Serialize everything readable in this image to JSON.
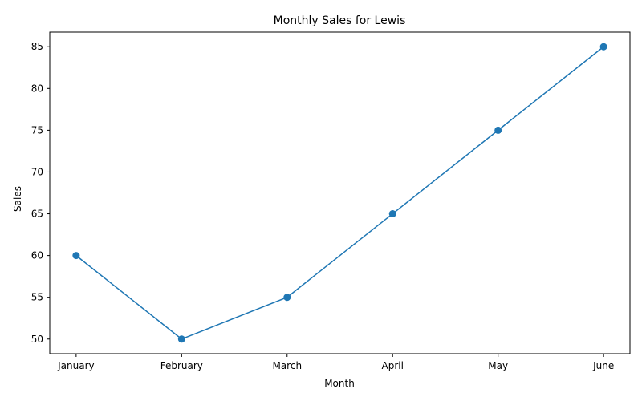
{
  "chart_data": {
    "type": "line",
    "title": "Monthly Sales for Lewis",
    "xlabel": "Month",
    "ylabel": "Sales",
    "categories": [
      "January",
      "February",
      "March",
      "April",
      "May",
      "June"
    ],
    "series": [
      {
        "values": [
          60,
          50,
          55,
          65,
          75,
          85
        ],
        "color": "#1f77b4",
        "marker": "circle"
      }
    ],
    "ylim": [
      48.25,
      86.75
    ],
    "yticks": [
      50,
      55,
      60,
      65,
      70,
      75,
      80,
      85
    ],
    "grid": false,
    "legend": "none"
  }
}
